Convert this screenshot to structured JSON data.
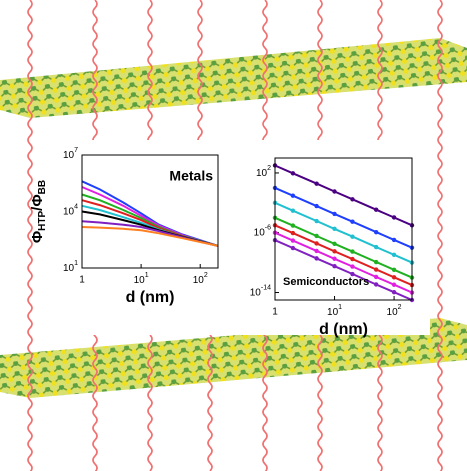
{
  "chart_data": [
    {
      "type": "line",
      "title": "Metals",
      "xlabel": "d (nm)",
      "ylabel": [
        "Φ",
        "HTP",
        "/Φ",
        "BB"
      ],
      "xscale": "log",
      "yscale": "log",
      "xlim": [
        1,
        200
      ],
      "ylim": [
        10,
        10000000
      ],
      "xticks": [
        1,
        {
          "value": 10,
          "label": "10",
          "exponent": "1"
        },
        {
          "value": 100,
          "label": "10",
          "exponent": "2"
        }
      ],
      "yticks": [
        {
          "value": 10,
          "label": "10",
          "exponent": "1"
        },
        {
          "value": 10000,
          "label": "10",
          "exponent": "4"
        },
        {
          "value": 10000000,
          "label": "10",
          "exponent": "7"
        }
      ],
      "x": [
        1,
        2,
        5,
        10,
        20,
        50,
        100,
        200
      ],
      "series": [
        {
          "color": "#1f3fff",
          "values": [
            400000,
            150000,
            30000,
            8000,
            2000,
            600,
            300,
            150
          ]
        },
        {
          "color": "#e020e0",
          "values": [
            200000,
            80000,
            20000,
            6000,
            1800,
            550,
            280,
            150
          ]
        },
        {
          "color": "#20b020",
          "values": [
            80000,
            40000,
            12000,
            4500,
            1500,
            500,
            270,
            150
          ]
        },
        {
          "color": "#e02020",
          "values": [
            40000,
            22000,
            8000,
            3500,
            1300,
            480,
            260,
            150
          ]
        },
        {
          "color": "#20c0d0",
          "values": [
            20000,
            12000,
            5000,
            2500,
            1100,
            450,
            260,
            150
          ]
        },
        {
          "color": "#000000",
          "values": [
            10000,
            7000,
            3500,
            2000,
            1000,
            450,
            260,
            150
          ]
        },
        {
          "color": "#8020c0",
          "values": [
            3000,
            2600,
            2000,
            1500,
            900,
            420,
            250,
            150
          ]
        },
        {
          "color": "#ff8020",
          "values": [
            1500,
            1400,
            1200,
            1000,
            700,
            380,
            240,
            150
          ]
        }
      ]
    },
    {
      "type": "line",
      "title": "Semiconductors",
      "xlabel": "d (nm)",
      "xscale": "log",
      "yscale": "log",
      "xlim": [
        1,
        200
      ],
      "ylim": [
        1e-15,
        10000
      ],
      "xticks": [
        1,
        {
          "value": 10,
          "label": "10",
          "exponent": "1"
        },
        {
          "value": 100,
          "label": "10",
          "exponent": "2"
        }
      ],
      "yticks": [
        {
          "value": 1e-14,
          "label": "10",
          "exponent": "-14"
        },
        {
          "value": 1e-06,
          "label": "10",
          "exponent": "-6"
        },
        {
          "value": 100,
          "label": "10",
          "exponent": "2"
        }
      ],
      "x": [
        1,
        2,
        5,
        10,
        20,
        50,
        100,
        200
      ],
      "series": [
        {
          "color": "#4b0082",
          "values": [
            1000,
            90,
            3.7,
            0.33,
            0.03,
            0.0012,
            0.00011,
            1e-05
          ]
        },
        {
          "color": "#1f3fff",
          "values": [
            1,
            0.09,
            0.0037,
            0.00033,
            3e-05,
            1.2e-06,
            1.1e-07,
            1e-08
          ]
        },
        {
          "color": "#20c0d0",
          "values": [
            0.01,
            0.0009,
            3.7e-05,
            3.3e-06,
            3e-07,
            1.2e-08,
            1.1e-09,
            1e-10
          ]
        },
        {
          "color": "#20b020",
          "values": [
            0.0001,
            9e-06,
            3.7e-07,
            3.3e-08,
            3e-09,
            1.2e-10,
            1.1e-11,
            1e-12
          ]
        },
        {
          "color": "#e02020",
          "values": [
            1e-05,
            9e-07,
            3.7e-08,
            3.3e-09,
            3e-10,
            1.2e-11,
            1.1e-12,
            1e-13
          ]
        },
        {
          "color": "#e020e0",
          "values": [
            1e-06,
            9e-08,
            3.7e-09,
            3.3e-10,
            3e-11,
            1.2e-12,
            1.1e-13,
            1e-14
          ]
        },
        {
          "color": "#8020c0",
          "values": [
            1e-07,
            9e-09,
            3.7e-10,
            3.3e-11,
            3e-12,
            1.2e-13,
            1.1e-14,
            1e-15
          ]
        }
      ]
    }
  ]
}
